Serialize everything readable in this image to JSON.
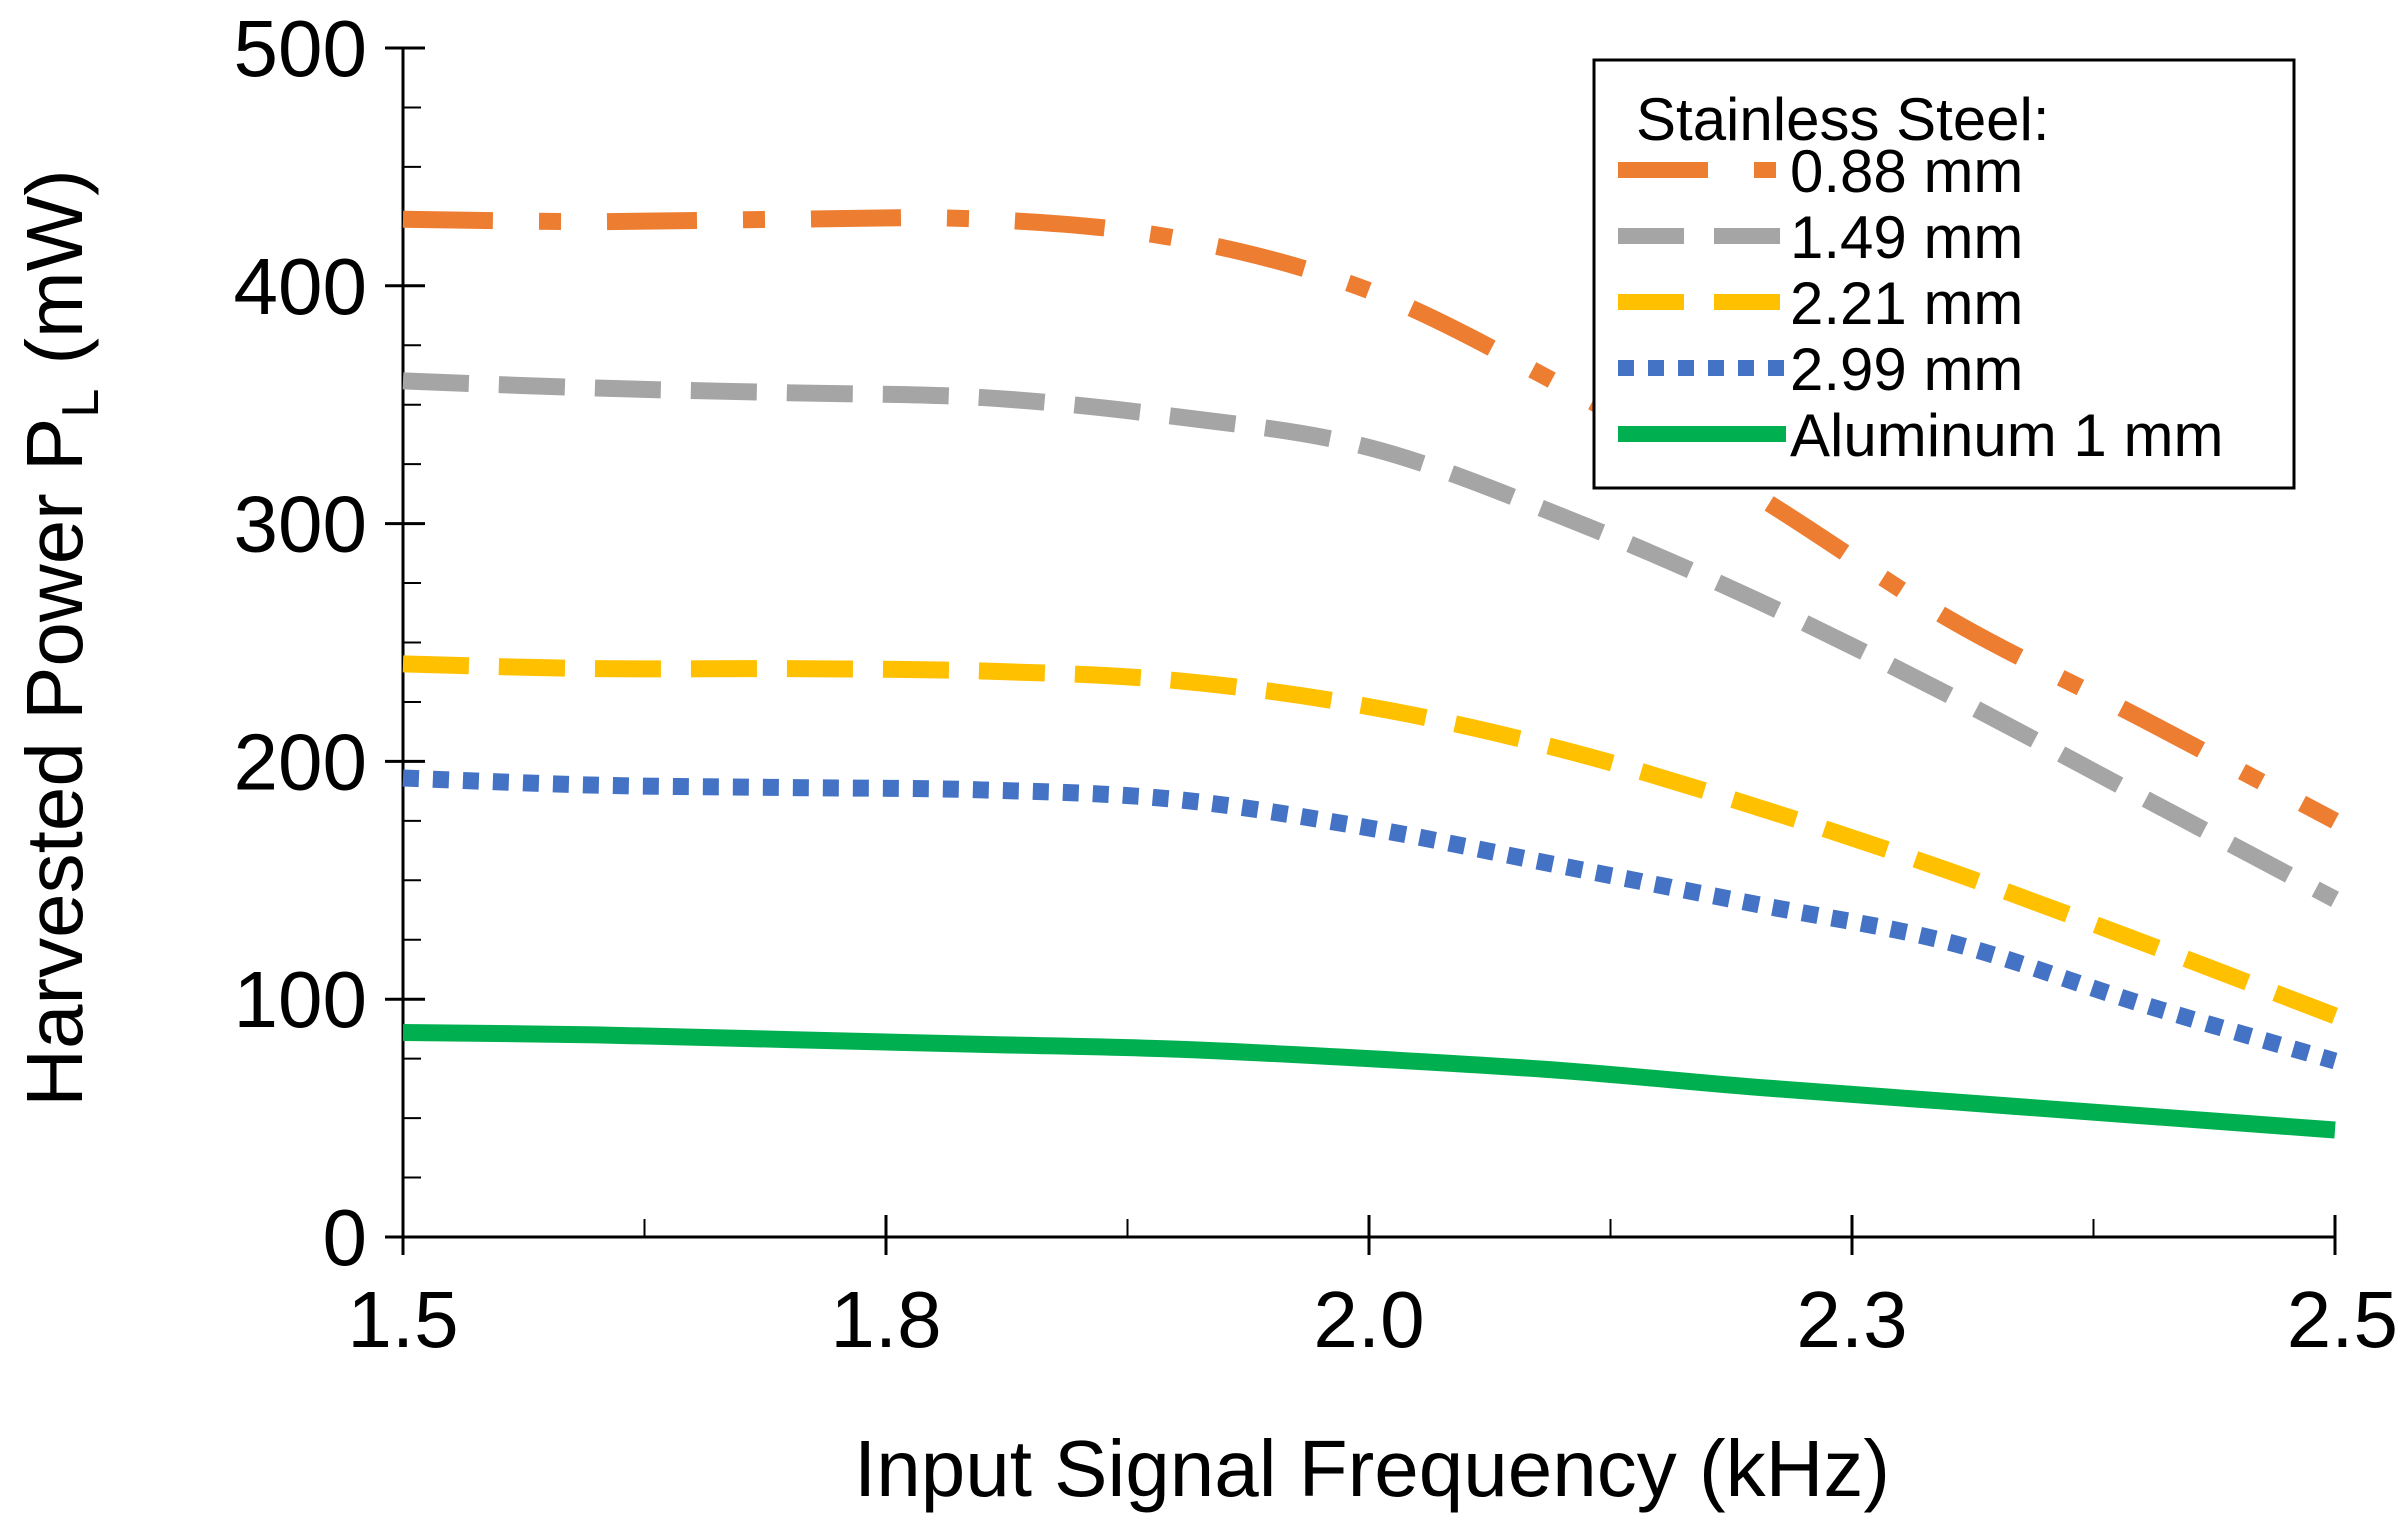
{
  "chart_data": {
    "type": "line",
    "xlabel": "Input Signal Frequency (kHz)",
    "ylabel_main": "Harvested Power P",
    "ylabel_sub": "L",
    "ylabel_unit": "(mW)",
    "xlim": [
      1.5,
      2.5
    ],
    "ylim": [
      0,
      500
    ],
    "x_ticks": [
      {
        "value": 1.5,
        "label": "1.5"
      },
      {
        "value": 1.75,
        "label": "1.8"
      },
      {
        "value": 2.0,
        "label": "2.0"
      },
      {
        "value": 2.25,
        "label": "2.3"
      },
      {
        "value": 2.5,
        "label": "2.5"
      }
    ],
    "x_minor_ticks": [
      1.625,
      1.875,
      2.125,
      2.375
    ],
    "y_ticks": [
      {
        "value": 0,
        "label": "0"
      },
      {
        "value": 100,
        "label": "100"
      },
      {
        "value": 200,
        "label": "200"
      },
      {
        "value": 300,
        "label": "300"
      },
      {
        "value": 400,
        "label": "400"
      },
      {
        "value": 500,
        "label": "500"
      }
    ],
    "y_minor_step": 25,
    "grid": false,
    "legend": {
      "position": "top-right",
      "title": "Stainless Steel:"
    },
    "x": [
      1.5,
      1.6,
      1.7,
      1.8,
      1.9,
      2.0,
      2.1,
      2.2,
      2.3,
      2.4,
      2.5
    ],
    "series": [
      {
        "name": "0.88 mm",
        "color": "#ED7D31",
        "dash": "dashdot",
        "values": [
          428,
          427,
          428,
          428,
          420,
          398,
          358,
          312,
          260,
          218,
          175
        ]
      },
      {
        "name": "1.49 mm",
        "color": "#A5A5A5",
        "dash": "dash",
        "values": [
          360,
          357,
          355,
          353,
          345,
          332,
          303,
          268,
          228,
          185,
          142
        ]
      },
      {
        "name": "2.21 mm",
        "color": "#FFC000",
        "dash": "dash",
        "values": [
          241,
          239,
          239,
          238,
          234,
          223,
          205,
          181,
          154,
          124,
          93
        ]
      },
      {
        "name": "2.99 mm",
        "color": "#4472C4",
        "dash": "dot",
        "values": [
          193,
          190,
          189,
          188,
          184,
          172,
          156,
          140,
          124,
          98,
          74
        ]
      },
      {
        "name": "Aluminum 1 mm",
        "color": "#00B050",
        "dash": "solid",
        "values": [
          86,
          85,
          83,
          81,
          79,
          75,
          70,
          63,
          57,
          51,
          45
        ]
      }
    ]
  }
}
